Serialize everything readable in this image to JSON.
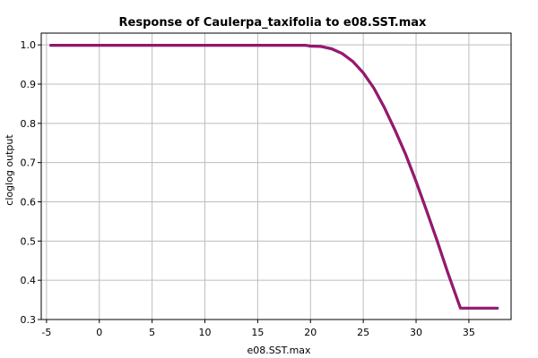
{
  "chart_data": {
    "type": "line",
    "title": "Response of Caulerpa_taxifolia to e08.SST.max",
    "xlabel": "e08.SST.max",
    "ylabel": "cloglog output",
    "xlim": [
      -5.5,
      39
    ],
    "ylim": [
      0.3,
      1.03
    ],
    "xticks": [
      -5,
      0,
      5,
      10,
      15,
      20,
      25,
      30,
      35
    ],
    "xtick_labels": [
      "-5",
      "0",
      "5",
      "10",
      "15",
      "20",
      "25",
      "30",
      "35"
    ],
    "yticks": [
      0.3,
      0.4,
      0.5,
      0.6,
      0.7,
      0.8,
      0.9,
      1.0
    ],
    "ytick_labels": [
      "0.3",
      "0.4",
      "0.5",
      "0.6",
      "0.7",
      "0.8",
      "0.9",
      "1.0"
    ],
    "grid": true,
    "series": [
      {
        "color": "#b0145a",
        "shadow_color": "#5a1a8c",
        "x": [
          -4.6,
          0,
          5,
          10,
          15,
          19.5,
          20,
          21,
          22,
          23,
          24,
          25,
          26,
          27,
          28,
          29,
          30,
          31,
          32,
          33,
          34.2,
          35,
          36,
          37,
          37.7
        ],
        "y": [
          0.999,
          0.999,
          0.999,
          0.999,
          0.999,
          0.999,
          0.997,
          0.996,
          0.99,
          0.978,
          0.958,
          0.929,
          0.89,
          0.84,
          0.783,
          0.722,
          0.652,
          0.577,
          0.5,
          0.42,
          0.329,
          0.329,
          0.329,
          0.329,
          0.329
        ]
      }
    ]
  }
}
